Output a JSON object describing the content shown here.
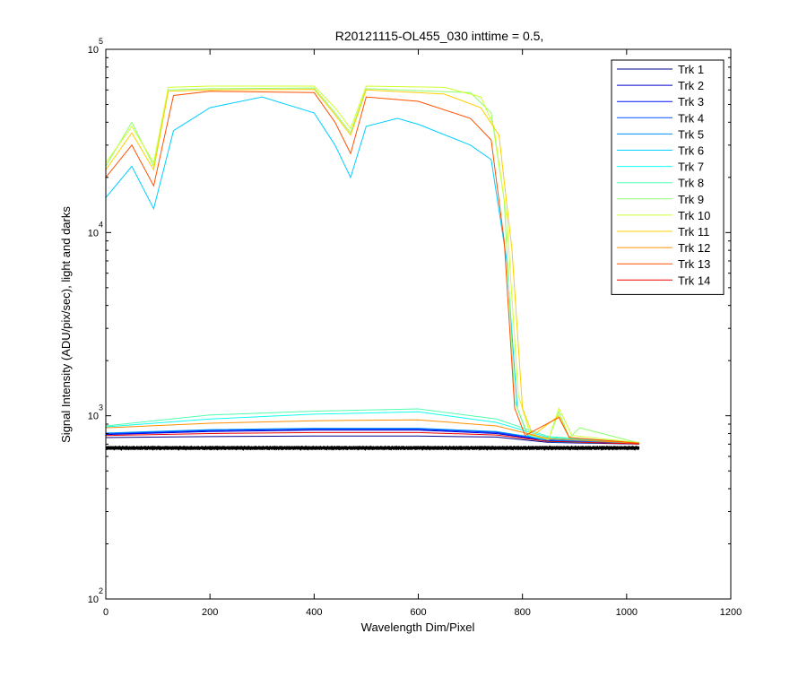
{
  "chart_data": {
    "type": "line",
    "title": "R20121115-OL455_030 inttime = 0.5,",
    "xlabel": "Wavelength Dim/Pixel",
    "ylabel": "Signal Intensity (ADU/pix/sec), light and darks",
    "xlim": [
      0,
      1200
    ],
    "ylim": [
      100,
      100000
    ],
    "yscale": "log",
    "grid": false,
    "legend_position": "top-right",
    "x_ticks": [
      0,
      200,
      400,
      600,
      800,
      1000,
      1200
    ],
    "x_tick_labels": [
      "0",
      "200",
      "400",
      "600",
      "800",
      "1000",
      "1200"
    ],
    "y_ticks": [
      100,
      1000,
      10000,
      100000
    ],
    "y_tick_labels": [
      {
        "base": "10",
        "exp": "2"
      },
      {
        "base": "10",
        "exp": "3"
      },
      {
        "base": "10",
        "exp": "4"
      },
      {
        "base": "10",
        "exp": "5"
      }
    ],
    "series": [
      {
        "name": "Trk 1",
        "color": "#00008f",
        "light": [
          [
            0,
            760
          ],
          [
            200,
            770
          ],
          [
            400,
            775
          ],
          [
            600,
            775
          ],
          [
            750,
            765
          ],
          [
            850,
            715
          ],
          [
            1024,
            700
          ]
        ],
        "dark": 660
      },
      {
        "name": "Trk 2",
        "color": "#0000cf",
        "light": [
          [
            0,
            790
          ],
          [
            200,
            820
          ],
          [
            400,
            835
          ],
          [
            600,
            835
          ],
          [
            750,
            800
          ],
          [
            850,
            730
          ],
          [
            1024,
            705
          ]
        ],
        "dark": 662
      },
      {
        "name": "Trk 3",
        "color": "#0010ff",
        "light": [
          [
            0,
            795
          ],
          [
            200,
            830
          ],
          [
            400,
            845
          ],
          [
            600,
            845
          ],
          [
            750,
            810
          ],
          [
            850,
            735
          ],
          [
            1024,
            705
          ]
        ],
        "dark": 663
      },
      {
        "name": "Trk 4",
        "color": "#0050ff",
        "light": [
          [
            0,
            800
          ],
          [
            200,
            835
          ],
          [
            400,
            850
          ],
          [
            600,
            850
          ],
          [
            750,
            815
          ],
          [
            850,
            735
          ],
          [
            1024,
            705
          ]
        ],
        "dark": 664
      },
      {
        "name": "Trk 5",
        "color": "#0090ff",
        "light": [
          [
            0,
            805
          ],
          [
            200,
            840
          ],
          [
            400,
            855
          ],
          [
            600,
            855
          ],
          [
            750,
            820
          ],
          [
            850,
            740
          ],
          [
            1024,
            710
          ]
        ],
        "dark": 665
      },
      {
        "name": "Trk 6",
        "color": "#00cfff",
        "light": [
          [
            0,
            15500
          ],
          [
            50,
            23000
          ],
          [
            92,
            13500
          ],
          [
            130,
            36000
          ],
          [
            200,
            48000
          ],
          [
            300,
            55000
          ],
          [
            400,
            45000
          ],
          [
            440,
            30000
          ],
          [
            470,
            20000
          ],
          [
            500,
            38000
          ],
          [
            560,
            42000
          ],
          [
            600,
            39000
          ],
          [
            700,
            30000
          ],
          [
            740,
            25000
          ],
          [
            770,
            7000
          ],
          [
            790,
            1100
          ],
          [
            810,
            780
          ],
          [
            850,
            720
          ],
          [
            1024,
            705
          ]
        ],
        "dark": 666
      },
      {
        "name": "Trk 7",
        "color": "#10ffef",
        "light": [
          [
            0,
            870
          ],
          [
            200,
            960
          ],
          [
            400,
            1020
          ],
          [
            600,
            1050
          ],
          [
            750,
            920
          ],
          [
            850,
            760
          ],
          [
            1024,
            710
          ]
        ],
        "dark": 667
      },
      {
        "name": "Trk 8",
        "color": "#50ffaf",
        "light": [
          [
            0,
            880
          ],
          [
            200,
            1010
          ],
          [
            400,
            1060
          ],
          [
            600,
            1090
          ],
          [
            750,
            960
          ],
          [
            850,
            770
          ],
          [
            1024,
            715
          ]
        ],
        "dark": 668
      },
      {
        "name": "Trk 9",
        "color": "#8fff70",
        "light": [
          [
            0,
            23000
          ],
          [
            50,
            40000
          ],
          [
            92,
            23000
          ],
          [
            120,
            60000
          ],
          [
            200,
            61000
          ],
          [
            400,
            61500
          ],
          [
            440,
            45000
          ],
          [
            470,
            35000
          ],
          [
            500,
            61000
          ],
          [
            700,
            58000
          ],
          [
            740,
            45000
          ],
          [
            765,
            15000
          ],
          [
            785,
            1200
          ],
          [
            810,
            790
          ],
          [
            850,
            740
          ],
          [
            870,
            1050
          ],
          [
            890,
            760
          ],
          [
            910,
            860
          ],
          [
            1024,
            710
          ]
        ],
        "dark": 669
      },
      {
        "name": "Trk 10",
        "color": "#cfff30",
        "light": [
          [
            0,
            24000
          ],
          [
            50,
            38000
          ],
          [
            92,
            24000
          ],
          [
            120,
            62000
          ],
          [
            200,
            63000
          ],
          [
            400,
            63000
          ],
          [
            440,
            48000
          ],
          [
            470,
            37000
          ],
          [
            500,
            63000
          ],
          [
            650,
            62000
          ],
          [
            720,
            55000
          ],
          [
            745,
            38000
          ],
          [
            770,
            12000
          ],
          [
            792,
            1300
          ],
          [
            815,
            790
          ],
          [
            850,
            740
          ],
          [
            870,
            1100
          ],
          [
            895,
            780
          ],
          [
            1024,
            712
          ]
        ],
        "dark": 670
      },
      {
        "name": "Trk 11",
        "color": "#ffcf00",
        "light": [
          [
            0,
            22000
          ],
          [
            50,
            35000
          ],
          [
            92,
            22000
          ],
          [
            120,
            59000
          ],
          [
            200,
            60000
          ],
          [
            400,
            60500
          ],
          [
            440,
            44000
          ],
          [
            470,
            34000
          ],
          [
            500,
            60000
          ],
          [
            650,
            57000
          ],
          [
            720,
            48000
          ],
          [
            755,
            34000
          ],
          [
            780,
            8000
          ],
          [
            800,
            1100
          ],
          [
            820,
            780
          ],
          [
            870,
            1000
          ],
          [
            890,
            760
          ],
          [
            1024,
            710
          ]
        ],
        "dark": 671
      },
      {
        "name": "Trk 12",
        "color": "#ff8f00",
        "light": [
          [
            0,
            860
          ],
          [
            200,
            910
          ],
          [
            400,
            940
          ],
          [
            600,
            950
          ],
          [
            750,
            880
          ],
          [
            850,
            750
          ],
          [
            1024,
            708
          ]
        ],
        "dark": 672
      },
      {
        "name": "Trk 13",
        "color": "#ff5000",
        "light": [
          [
            0,
            20000
          ],
          [
            50,
            30000
          ],
          [
            92,
            18000
          ],
          [
            130,
            56000
          ],
          [
            200,
            59000
          ],
          [
            400,
            58000
          ],
          [
            440,
            40000
          ],
          [
            470,
            27000
          ],
          [
            500,
            55000
          ],
          [
            600,
            52000
          ],
          [
            700,
            42000
          ],
          [
            740,
            32000
          ],
          [
            765,
            9000
          ],
          [
            785,
            1100
          ],
          [
            805,
            780
          ],
          [
            870,
            980
          ],
          [
            890,
            760
          ],
          [
            1024,
            708
          ]
        ],
        "dark": 673
      },
      {
        "name": "Trk 14",
        "color": "#ef0000",
        "light": [
          [
            0,
            780
          ],
          [
            200,
            800
          ],
          [
            400,
            810
          ],
          [
            600,
            810
          ],
          [
            750,
            785
          ],
          [
            850,
            725
          ],
          [
            1024,
            702
          ]
        ],
        "dark": 674
      }
    ]
  }
}
